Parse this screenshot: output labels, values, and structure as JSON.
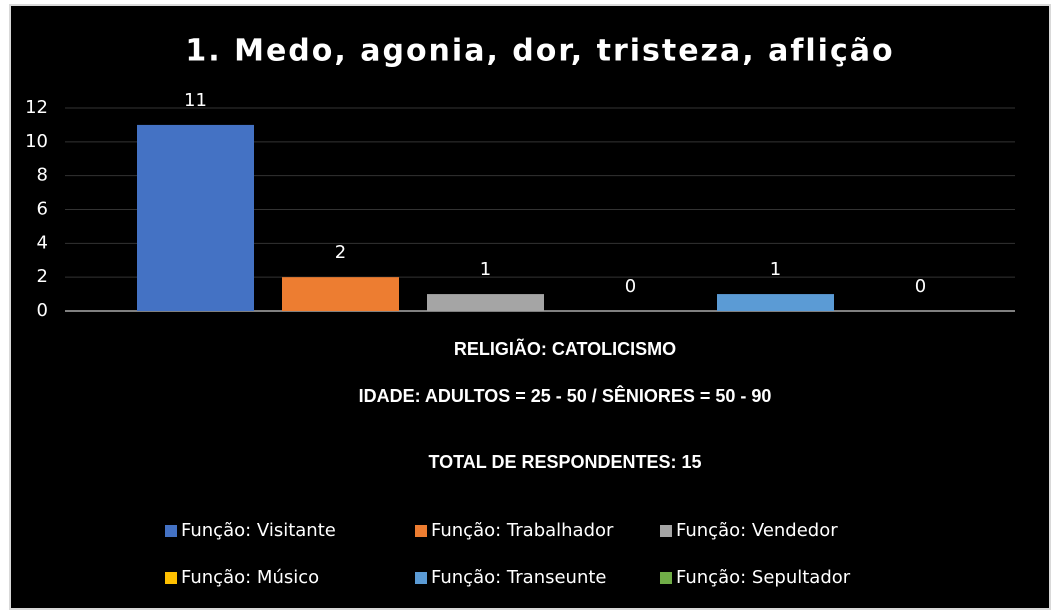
{
  "chart_data": {
    "type": "bar",
    "title": "1. Medo, agonia, dor, tristeza, aflição",
    "categories": [
      null
    ],
    "series": [
      {
        "name": "Função: Visitante",
        "color": "#4472c4",
        "values": [
          11
        ]
      },
      {
        "name": "Função: Trabalhador",
        "color": "#ed7d31",
        "values": [
          2
        ]
      },
      {
        "name": "Função: Vendedor",
        "color": "#a5a5a5",
        "values": [
          1
        ]
      },
      {
        "name": "Função: Músico",
        "color": "#ffc000",
        "values": [
          0
        ]
      },
      {
        "name": "Função: Transeunte",
        "color": "#5b9bd5",
        "values": [
          1
        ]
      },
      {
        "name": "Função: Sepultador",
        "color": "#70ad47",
        "values": [
          0
        ]
      }
    ],
    "annotations": [
      "RELIGIÃO: CATOLICISMO",
      "IDADE: ADULTOS = 25 - 50 / SÊNIORES = 50 - 90",
      "TOTAL DE RESPONDENTES: 15"
    ],
    "ylim": [
      0,
      12
    ],
    "yticks": [
      0,
      2,
      4,
      6,
      8,
      10,
      12
    ],
    "grid": true,
    "legend": "bottom"
  }
}
